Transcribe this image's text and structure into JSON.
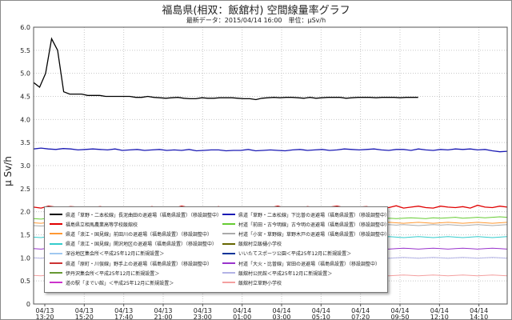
{
  "header": {
    "title": "福島県(相双：飯舘村) 空間線量率グラフ",
    "subtitle": "最新データ：2015/04/14 16:00　単位：μSv/h"
  },
  "chart_data": {
    "type": "line",
    "ylabel": "μ Sv/h",
    "ylim": [
      0,
      6.0
    ],
    "yticks": [
      "0",
      "0.5",
      "1.0",
      "1.5",
      "2.0",
      "2.5",
      "3.0",
      "3.5",
      "4.0",
      "4.5",
      "5.0",
      "5.5",
      "6.0"
    ],
    "xticks": [
      [
        "04/13",
        "13:20"
      ],
      [
        "04/13",
        "15:20"
      ],
      [
        "04/13",
        "17:40"
      ],
      [
        "04/13",
        "21:00"
      ],
      [
        "04/13",
        "23:00"
      ],
      [
        "04/14",
        "01:00"
      ],
      [
        "04/14",
        "03:00"
      ],
      [
        "04/14",
        "05:10"
      ],
      [
        "04/14",
        "07:20"
      ],
      [
        "04/14",
        "09:50"
      ],
      [
        "04/14",
        "12:10"
      ],
      [
        "04/14",
        "14:10"
      ]
    ],
    "grid": true,
    "legend_position": "bottom-left",
    "series": [
      {
        "name": "県道「草野・二本松線」長泥曲田の退避場（福島県設置）（移設調整中）",
        "color": "#000000",
        "values": [
          4.8,
          4.7,
          5.0,
          5.75,
          5.5,
          4.6,
          4.55,
          4.55,
          4.55,
          4.52,
          4.52,
          4.52,
          4.5,
          4.5,
          4.5,
          4.5,
          4.5,
          4.48,
          4.48,
          4.5,
          4.48,
          4.47,
          4.46,
          4.47,
          4.48,
          4.46,
          4.45,
          4.45,
          4.47,
          4.46,
          4.46,
          4.47,
          4.47,
          4.47,
          4.46,
          4.45,
          4.45,
          4.43,
          4.46,
          4.47,
          4.48,
          4.47,
          4.48,
          4.48,
          4.47,
          4.46,
          4.48,
          4.46,
          4.47,
          4.48,
          4.48,
          4.48,
          4.46,
          4.47,
          4.48,
          4.48,
          4.48,
          4.47,
          4.48,
          4.48,
          4.48,
          4.47,
          4.48,
          4.48,
          4.48
        ]
      },
      {
        "name": "県道「草野・二本松線」下比曽の退避場（福島県設置）（移設調整中）",
        "color": "#1a1ab4",
        "values": [
          3.36,
          3.38,
          3.36,
          3.35,
          3.37,
          3.36,
          3.34,
          3.35,
          3.36,
          3.35,
          3.34,
          3.36,
          3.33,
          3.34,
          3.35,
          3.33,
          3.34,
          3.35,
          3.33,
          3.34,
          3.33,
          3.35,
          3.32,
          3.33,
          3.34,
          3.34,
          3.32,
          3.33,
          3.33,
          3.35,
          3.32,
          3.33,
          3.34,
          3.33,
          3.32,
          3.34,
          3.35,
          3.33,
          3.34,
          3.35,
          3.33,
          3.34,
          3.36,
          3.35,
          3.34,
          3.35,
          3.36,
          3.34,
          3.33,
          3.35,
          3.35,
          3.33,
          3.36,
          3.34,
          3.33,
          3.35,
          3.34,
          3.36,
          3.35,
          3.36,
          3.34,
          3.35,
          3.32,
          3.3,
          3.31
        ]
      },
      {
        "name": "福島県立相馬農業高等学校飯舘校",
        "color": "#e00000",
        "values": [
          2.1,
          2.08,
          2.12,
          2.1,
          2.09,
          2.11,
          2.1,
          2.06,
          2.09,
          2.11,
          2.08,
          2.1,
          2.07,
          2.09,
          2.1,
          2.08,
          2.11,
          2.07,
          2.1,
          2.08,
          2.12,
          2.09,
          2.07,
          2.1,
          2.08,
          2.11,
          2.06,
          2.09,
          2.1,
          2.08,
          2.07,
          2.1,
          2.09,
          2.12,
          2.08,
          2.1,
          2.07,
          2.11,
          2.09,
          2.08,
          2.1,
          2.12,
          2.09,
          2.07,
          2.1,
          2.11,
          2.08,
          2.1,
          2.09,
          2.13,
          2.08,
          2.1,
          2.12,
          2.09,
          2.08,
          2.12,
          2.1,
          2.09,
          2.11,
          2.08,
          2.14,
          2.1,
          2.09,
          2.12,
          2.1
        ]
      },
      {
        "name": "村道「前田・古今明線」古今明の退避場（福島県設置）（移設調整中）",
        "color": "#66cc33",
        "values": [
          1.85,
          1.84,
          1.86,
          1.85,
          1.84,
          1.85,
          1.83,
          1.84,
          1.85,
          1.84,
          1.83,
          1.85,
          1.84,
          1.85,
          1.83,
          1.84,
          1.85,
          1.84,
          1.85,
          1.84,
          1.84,
          1.85,
          1.83,
          1.84,
          1.85,
          1.84,
          1.85,
          1.84,
          1.83,
          1.85,
          1.84,
          1.85,
          1.84,
          1.85,
          1.84,
          1.83,
          1.85,
          1.84,
          1.85,
          1.84,
          1.85,
          1.84,
          1.85,
          1.86,
          1.84,
          1.85,
          1.86,
          1.85,
          1.86,
          1.85,
          1.86,
          1.87,
          1.86,
          1.85,
          1.87,
          1.86,
          1.87,
          1.88,
          1.86,
          1.87,
          1.88,
          1.87,
          1.88,
          1.89,
          1.88
        ]
      },
      {
        "name": "県道「浪江・国見線」前田川の退避場（福島県設置）（移設調整中）",
        "color": "#ff9933",
        "values": [
          1.76,
          1.75,
          1.77,
          1.76,
          1.75,
          1.76,
          1.77,
          1.75,
          1.76,
          1.75,
          1.76,
          1.77,
          1.75,
          1.76,
          1.75,
          1.76,
          1.75,
          1.77,
          1.76,
          1.75,
          1.76,
          1.75,
          1.76,
          1.77,
          1.76,
          1.75,
          1.76,
          1.75,
          1.76,
          1.77,
          1.75,
          1.76,
          1.75,
          1.76,
          1.77,
          1.76,
          1.75,
          1.76,
          1.75,
          1.76,
          1.77,
          1.76,
          1.75,
          1.76,
          1.77,
          1.76,
          1.75,
          1.76,
          1.77,
          1.76,
          1.75,
          1.76,
          1.77,
          1.76,
          1.75,
          1.76,
          1.77,
          1.76,
          1.75,
          1.76,
          1.77,
          1.76,
          1.75,
          1.76,
          1.77
        ]
      },
      {
        "name": "村道「小宮・草野線」草野木戸の退避場（福島県設置）（移設調整中）",
        "color": "#aaaaaa",
        "values": [
          1.7,
          1.69,
          1.7,
          1.71,
          1.7,
          1.69,
          1.7,
          1.71,
          1.7,
          1.69,
          1.7,
          1.71,
          1.7,
          1.69,
          1.7,
          1.71,
          1.7,
          1.69,
          1.7,
          1.7,
          1.71,
          1.7,
          1.69,
          1.7,
          1.71,
          1.7,
          1.69,
          1.7,
          1.71,
          1.7,
          1.69,
          1.7,
          1.71,
          1.7,
          1.69,
          1.7,
          1.71,
          1.7,
          1.69,
          1.7,
          1.71,
          1.7,
          1.69,
          1.7,
          1.71,
          1.7,
          1.7,
          1.71,
          1.72,
          1.71,
          1.72,
          1.71,
          1.7,
          1.71,
          1.72,
          1.71,
          1.72,
          1.71,
          1.7,
          1.71,
          1.72,
          1.71,
          1.7,
          1.71,
          1.72
        ]
      },
      {
        "name": "県道「浪江・国見線」関沢地区の退避場（福島県設置）（移設調整中）",
        "color": "#33cccc",
        "values": [
          1.45,
          1.44,
          1.46,
          1.45,
          1.44,
          1.45,
          1.46,
          1.44,
          1.45,
          1.44,
          1.45,
          1.46,
          1.44,
          1.45,
          1.44,
          1.45,
          1.46,
          1.45,
          1.44,
          1.45,
          1.46,
          1.45,
          1.44,
          1.45,
          1.46,
          1.45,
          1.44,
          1.45,
          1.46,
          1.45,
          1.44,
          1.45,
          1.46,
          1.45,
          1.44,
          1.45,
          1.46,
          1.45,
          1.44,
          1.45,
          1.46,
          1.45,
          1.44,
          1.45,
          1.46,
          1.45,
          1.44,
          1.45,
          1.46,
          1.45,
          1.44,
          1.45,
          1.46,
          1.45,
          1.44,
          1.45,
          1.46,
          1.45,
          1.44,
          1.45,
          1.46,
          1.45,
          1.44,
          1.45,
          1.46
        ]
      },
      {
        "name": "村道「大火・比曽線」宮田の退避場（福島県設置）（移設調整中）",
        "color": "#9933cc",
        "values": [
          1.2,
          1.19,
          1.21,
          1.2,
          1.19,
          1.2,
          1.21,
          1.2,
          1.19,
          1.2,
          1.21,
          1.2,
          1.19,
          1.2,
          1.21,
          1.2,
          1.19,
          1.2,
          1.21,
          1.2,
          1.19,
          1.2,
          1.21,
          1.2,
          1.19,
          1.2,
          1.21,
          1.2,
          1.19,
          1.2,
          1.21,
          1.2,
          1.19,
          1.2,
          1.21,
          1.2,
          1.19,
          1.2,
          1.21,
          1.2,
          1.19,
          1.2,
          1.21,
          1.2,
          1.19,
          1.2,
          1.21,
          1.2,
          1.19,
          1.2,
          1.21,
          1.2,
          1.19,
          1.2,
          1.21,
          1.2,
          1.19,
          1.2,
          1.21,
          1.2,
          1.19,
          1.2,
          1.21,
          1.2,
          1.19
        ]
      },
      {
        "name": "飯舘村公民館＜平成25年12月に新規設置＞",
        "color": "#b3b3e6",
        "values": [
          1.0,
          0.99,
          1.01,
          1.0,
          0.99,
          1.0,
          1.01,
          1.0,
          0.99,
          1.0,
          1.01,
          1.0,
          0.99,
          1.0,
          1.01,
          1.0,
          0.99,
          1.0,
          1.01,
          1.0,
          0.99,
          1.0,
          1.01,
          1.0,
          0.99,
          1.0,
          1.01,
          1.0,
          0.99,
          1.0,
          1.01,
          1.0,
          0.99,
          1.0,
          1.01,
          1.0,
          0.99,
          1.0,
          1.01,
          1.0,
          0.99,
          1.0,
          1.01,
          1.0,
          0.99,
          1.0,
          1.01,
          1.0,
          0.99,
          1.0,
          1.01,
          1.0,
          0.99,
          1.0,
          1.01,
          1.0,
          0.99,
          1.0,
          1.01,
          1.0,
          0.99,
          1.0,
          1.01,
          1.0,
          0.99
        ]
      },
      {
        "name": "飯舘村立草野小学校",
        "color": "#f4a0a0",
        "values": [
          0.62,
          0.61,
          0.63,
          0.62,
          0.61,
          0.62,
          0.63,
          0.62,
          0.61,
          0.62,
          0.63,
          0.62,
          0.61,
          0.62,
          0.63,
          0.62,
          0.61,
          0.62,
          0.63,
          0.62,
          0.61,
          0.62,
          0.63,
          0.62,
          0.61,
          0.62,
          0.63,
          0.62,
          0.61,
          0.62,
          0.63,
          0.62,
          0.61,
          0.62,
          0.63,
          0.62,
          0.61,
          0.62,
          0.63,
          0.62,
          0.61,
          0.62,
          0.63,
          0.62,
          0.61,
          0.62,
          0.63,
          0.62,
          0.61,
          0.62,
          0.63,
          0.62,
          0.61,
          0.62,
          0.63,
          0.62,
          0.61,
          0.62,
          0.63,
          0.62,
          0.61,
          0.62,
          0.63,
          0.62,
          0.61
        ]
      }
    ],
    "legend": [
      {
        "label": "県道「草野・二本松線」長泥曲田の退避場（福島県設置）（移設調整中）",
        "color": "#000000"
      },
      {
        "label": "県道「草野・二本松線」下比曽の退避場（福島県設置）（移設調整中）",
        "color": "#1a1ab4"
      },
      {
        "label": "福島県立相馬農業高等学校飯舘校",
        "color": "#e00000"
      },
      {
        "label": "村道「前田・古今明線」古今明の退避場（福島県設置）（移設調整中）",
        "color": "#66cc33"
      },
      {
        "label": "県道「浪江・国見線」前田川の退避場（福島県設置）（移設調整中）",
        "color": "#ff9933"
      },
      {
        "label": "村道「小宮・草野線」草野木戸の退避場（福島県設置）（移設調整中）",
        "color": "#aaaaaa"
      },
      {
        "label": "県道「浪江・国見線」関沢地区の退避場（福島県設置）（移設調整中）",
        "color": "#33cccc"
      },
      {
        "label": "飯舘村立飯樋小学校",
        "color": "#666600"
      },
      {
        "label": "深谷地区集会所＜平成25年12月に新規設置＞",
        "color": "#a0c8f0"
      },
      {
        "label": "いいたてスポーツ公園＜平成25年12月に新規設置＞",
        "color": "#003399"
      },
      {
        "label": "県道「原町・川俣線」野手上の退避場（福島県設置）（移設調整中）",
        "color": "#cc3333"
      },
      {
        "label": "村道「大火・比曽線」宮田の退避場（福島県設置）（移設調整中）",
        "color": "#9933cc"
      },
      {
        "label": "伊丹沢集会所＜平成25年12月に新規設置＞",
        "color": "#669933"
      },
      {
        "label": "飯舘村公民館＜平成25年12月に新規設置＞",
        "color": "#b3b3e6"
      },
      {
        "label": "道の駅「までい館」＜平成25年12月に新規設置＞",
        "color": "#cc33cc"
      },
      {
        "label": "飯舘村立草野小学校",
        "color": "#f4a0a0"
      }
    ]
  }
}
